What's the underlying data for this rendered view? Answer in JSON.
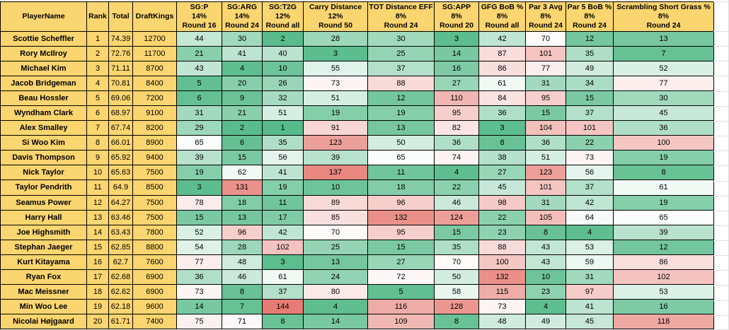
{
  "columns": [
    {
      "label": "PlayerName"
    },
    {
      "label": "Rank"
    },
    {
      "label": "Total"
    },
    {
      "label": "DraftKings"
    },
    {
      "label": "SG:P",
      "weight": "14%",
      "round": "Round 16"
    },
    {
      "label": "SG:ARG",
      "weight": "14%",
      "round": "Round 24"
    },
    {
      "label": "SG:T2G",
      "weight": "12%",
      "round": "Round all"
    },
    {
      "label": "Carry Distance",
      "weight": "12%",
      "round": "Round 50"
    },
    {
      "label": "TOT Distance EFF",
      "weight": "8%",
      "round": "Round 24"
    },
    {
      "label": "SG:APP",
      "weight": "8%",
      "round": "Round 20"
    },
    {
      "label": "GFG BoB %",
      "weight": "8%",
      "round": "Round all"
    },
    {
      "label": "Par 3 Avg",
      "weight": "8%",
      "round": "Round 24"
    },
    {
      "label": "Par 5 BoB %",
      "weight": "8%",
      "round": "Round 24"
    },
    {
      "label": "Scrambling Short Grass %",
      "weight": "8%",
      "round": "Round 24"
    }
  ],
  "players": [
    {
      "name": "Scottie Scheffler",
      "rank": 1,
      "total": "74.39",
      "draftkings": 12700,
      "stats": [
        44,
        30,
        2,
        28,
        30,
        3,
        42,
        70,
        12,
        13
      ]
    },
    {
      "name": "Rory McIlroy",
      "rank": 2,
      "total": "72.76",
      "draftkings": 11700,
      "stats": [
        21,
        41,
        40,
        3,
        25,
        14,
        87,
        101,
        35,
        7
      ]
    },
    {
      "name": "Michael Kim",
      "rank": 3,
      "total": "71.11",
      "draftkings": 8700,
      "stats": [
        43,
        4,
        10,
        55,
        37,
        16,
        86,
        77,
        49,
        52
      ]
    },
    {
      "name": "Jacob Bridgeman",
      "rank": 4,
      "total": "70.81",
      "draftkings": 8400,
      "stats": [
        5,
        20,
        26,
        73,
        88,
        27,
        61,
        31,
        34,
        77
      ]
    },
    {
      "name": "Beau Hossler",
      "rank": 5,
      "total": "69.06",
      "draftkings": 7200,
      "stats": [
        6,
        9,
        32,
        51,
        12,
        110,
        84,
        95,
        15,
        30
      ]
    },
    {
      "name": "Wyndham Clark",
      "rank": 6,
      "total": "68.97",
      "draftkings": 9100,
      "stats": [
        31,
        21,
        51,
        19,
        19,
        95,
        36,
        15,
        37,
        45
      ]
    },
    {
      "name": "Alex Smalley",
      "rank": 7,
      "total": "67.74",
      "draftkings": 8200,
      "stats": [
        29,
        2,
        1,
        91,
        13,
        82,
        3,
        104,
        101,
        36
      ]
    },
    {
      "name": "Si Woo Kim",
      "rank": 8,
      "total": "66.01",
      "draftkings": 8900,
      "stats": [
        65,
        6,
        35,
        123,
        50,
        36,
        8,
        36,
        22,
        100
      ]
    },
    {
      "name": "Davis Thompson",
      "rank": 9,
      "total": "65.92",
      "draftkings": 9400,
      "stats": [
        39,
        15,
        56,
        39,
        65,
        74,
        38,
        51,
        73,
        19
      ]
    },
    {
      "name": "Nick Taylor",
      "rank": 10,
      "total": "65.63",
      "draftkings": 7500,
      "stats": [
        19,
        62,
        41,
        137,
        11,
        4,
        27,
        123,
        56,
        8
      ]
    },
    {
      "name": "Taylor Pendrith",
      "rank": 11,
      "total": "64.9",
      "draftkings": 8500,
      "stats": [
        3,
        131,
        19,
        10,
        18,
        22,
        45,
        101,
        37,
        61
      ]
    },
    {
      "name": "Seamus Power",
      "rank": 12,
      "total": "64.27",
      "draftkings": 7500,
      "stats": [
        78,
        18,
        11,
        89,
        96,
        46,
        98,
        31,
        42,
        19
      ]
    },
    {
      "name": "Harry Hall",
      "rank": 13,
      "total": "63.46",
      "draftkings": 7500,
      "stats": [
        15,
        13,
        17,
        85,
        132,
        124,
        22,
        105,
        64,
        65
      ]
    },
    {
      "name": "Joe Highsmith",
      "rank": 14,
      "total": "63.43",
      "draftkings": 7800,
      "stats": [
        52,
        96,
        42,
        70,
        95,
        15,
        23,
        8,
        4,
        39
      ]
    },
    {
      "name": "Stephan Jaeger",
      "rank": 15,
      "total": "62.85",
      "draftkings": 8800,
      "stats": [
        54,
        28,
        102,
        25,
        15,
        35,
        88,
        43,
        53,
        12
      ]
    },
    {
      "name": "Kurt Kitayama",
      "rank": 16,
      "total": "62.7",
      "draftkings": 7600,
      "stats": [
        77,
        48,
        3,
        13,
        27,
        70,
        100,
        43,
        59,
        86
      ]
    },
    {
      "name": "Ryan Fox",
      "rank": 17,
      "total": "62.68",
      "draftkings": 6900,
      "stats": [
        36,
        46,
        61,
        24,
        72,
        50,
        132,
        10,
        31,
        102
      ]
    },
    {
      "name": "Mac Meissner",
      "rank": 18,
      "total": "62.62",
      "draftkings": 6900,
      "stats": [
        73,
        8,
        37,
        80,
        5,
        58,
        115,
        23,
        97,
        53
      ]
    },
    {
      "name": "Min Woo Lee",
      "rank": 19,
      "total": "62.18",
      "draftkings": 9600,
      "stats": [
        14,
        7,
        144,
        4,
        116,
        128,
        73,
        4,
        41,
        16
      ]
    },
    {
      "name": "Nicolai Højgaard",
      "rank": 20,
      "total": "61.71",
      "draftkings": 7400,
      "stats": [
        75,
        71,
        8,
        14,
        109,
        8,
        48,
        49,
        45,
        118
      ]
    }
  ],
  "colors": {
    "header_bg": "#FBD56F",
    "cell_border": "#000000",
    "gutter_grid": "#DDDDDD",
    "scale": {
      "min_value": 1,
      "mid_value": 67,
      "max_value": 144,
      "min_color": "#57BB8A",
      "mid_color": "#FFFFFF",
      "max_color": "#E67C73"
    }
  }
}
